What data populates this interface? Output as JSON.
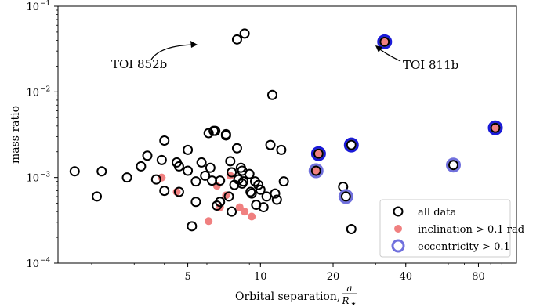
{
  "chart_data": {
    "type": "scatter",
    "title": "",
    "xlabel": "Orbital separation,",
    "xlabel_fraction": {
      "numerator": "a",
      "denominator": "R",
      "denominator_sub": "★"
    },
    "ylabel": "mass ratio",
    "x_scale": "log",
    "y_scale": "log",
    "xlim": [
      1.45,
      115
    ],
    "ylim": [
      0.0001,
      0.1
    ],
    "x_ticks": [
      5,
      10,
      20,
      40,
      80
    ],
    "x_tick_labels": [
      "5",
      "10",
      "20",
      "40",
      "80"
    ],
    "y_ticks": [
      0.0001,
      0.001,
      0.01,
      0.1
    ],
    "y_tick_labels": [
      {
        "base": "10",
        "exp": "−4"
      },
      {
        "base": "10",
        "exp": "−3"
      },
      {
        "base": "10",
        "exp": "−2"
      },
      {
        "base": "10",
        "exp": "−1"
      }
    ],
    "grid": false,
    "legend_position": "lower-right",
    "legend": [
      {
        "label": "all data",
        "marker": "black-ring"
      },
      {
        "label": "inclination > 0.1 rad",
        "marker": "red-dot"
      },
      {
        "label": "eccentricity > 0.1",
        "marker": "blue-ring"
      }
    ],
    "colors": {
      "all_data": "#000000",
      "inclination": "#f08080",
      "eccentricity": "#7070dd",
      "eccentricity_strong": "#1a1ad8"
    },
    "annotations": [
      {
        "text": "TOI 852b",
        "x": 8.2,
        "y": 0.041
      },
      {
        "text": "TOI 811b",
        "x": 32.7,
        "y": 0.0385
      }
    ],
    "series": [
      {
        "name": "all data",
        "points": [
          [
            1.7,
            0.00118
          ],
          [
            2.1,
            0.0006
          ],
          [
            2.2,
            0.00118
          ],
          [
            2.8,
            0.001
          ],
          [
            3.2,
            0.00135
          ],
          [
            3.4,
            0.0018
          ],
          [
            3.7,
            0.00095
          ],
          [
            3.9,
            0.0016
          ],
          [
            4.0,
            0.0027
          ],
          [
            4.0,
            0.0007
          ],
          [
            4.5,
            0.0015
          ],
          [
            4.6,
            0.00135
          ],
          [
            4.6,
            0.00068
          ],
          [
            5.0,
            0.0021
          ],
          [
            5.0,
            0.0012
          ],
          [
            5.4,
            0.0009
          ],
          [
            5.4,
            0.00052
          ],
          [
            5.7,
            0.0015
          ],
          [
            5.9,
            0.00105
          ],
          [
            6.1,
            0.0033
          ],
          [
            6.2,
            0.0013
          ],
          [
            6.3,
            0.00092
          ],
          [
            6.4,
            0.0035
          ],
          [
            6.5,
            0.0035
          ],
          [
            6.6,
            0.00047
          ],
          [
            6.8,
            0.00052
          ],
          [
            6.8,
            0.00092
          ],
          [
            7.2,
            0.0032
          ],
          [
            7.2,
            0.0031
          ],
          [
            7.4,
            0.0006
          ],
          [
            7.5,
            0.00155
          ],
          [
            7.6,
            0.00115
          ],
          [
            7.6,
            0.0004
          ],
          [
            7.8,
            0.00082
          ],
          [
            8.0,
            0.0022
          ],
          [
            8.1,
            0.00095
          ],
          [
            8.3,
            0.0013
          ],
          [
            8.4,
            0.0012
          ],
          [
            8.4,
            0.00085
          ],
          [
            8.5,
            0.0009
          ],
          [
            9.0,
            0.0011
          ],
          [
            9.1,
            0.00068
          ],
          [
            9.2,
            0.00065
          ],
          [
            9.5,
            0.0009
          ],
          [
            9.6,
            0.00048
          ],
          [
            9.8,
            0.00082
          ],
          [
            10.0,
            0.00072
          ],
          [
            10.3,
            0.00045
          ],
          [
            10.6,
            0.0006
          ],
          [
            11.0,
            0.0024
          ],
          [
            11.5,
            0.00065
          ],
          [
            11.7,
            0.00055
          ],
          [
            12.2,
            0.0021
          ],
          [
            12.5,
            0.0009
          ],
          [
            5.2,
            0.00027
          ],
          [
            8.0,
            0.041
          ],
          [
            8.6,
            0.048
          ],
          [
            11.2,
            0.0092
          ],
          [
            22.0,
            0.00078
          ],
          [
            23.8,
            0.00025
          ]
        ]
      },
      {
        "name": "inclination > 0.1 rad",
        "points": [
          [
            3.9,
            0.001
          ],
          [
            4.5,
            0.00068
          ],
          [
            6.1,
            0.00031
          ],
          [
            6.6,
            0.0008
          ],
          [
            6.8,
            0.00045
          ],
          [
            7.2,
            0.00062
          ],
          [
            7.5,
            0.00105
          ],
          [
            8.2,
            0.00045
          ],
          [
            8.6,
            0.0004
          ],
          [
            9.2,
            0.00035
          ],
          [
            17.0,
            0.0012
          ],
          [
            17.4,
            0.0019
          ],
          [
            32.7,
            0.0385
          ],
          [
            94.0,
            0.0038
          ]
        ]
      },
      {
        "name": "eccentricity > 0.1",
        "points": [
          [
            17.0,
            0.0012,
            "light"
          ],
          [
            17.4,
            0.0019,
            "strong"
          ],
          [
            22.6,
            0.0006,
            "light"
          ],
          [
            23.8,
            0.0024,
            "strong"
          ],
          [
            32.7,
            0.0385,
            "strong"
          ],
          [
            63.0,
            0.0014,
            "light"
          ],
          [
            94.0,
            0.0038,
            "strong"
          ]
        ]
      }
    ]
  }
}
